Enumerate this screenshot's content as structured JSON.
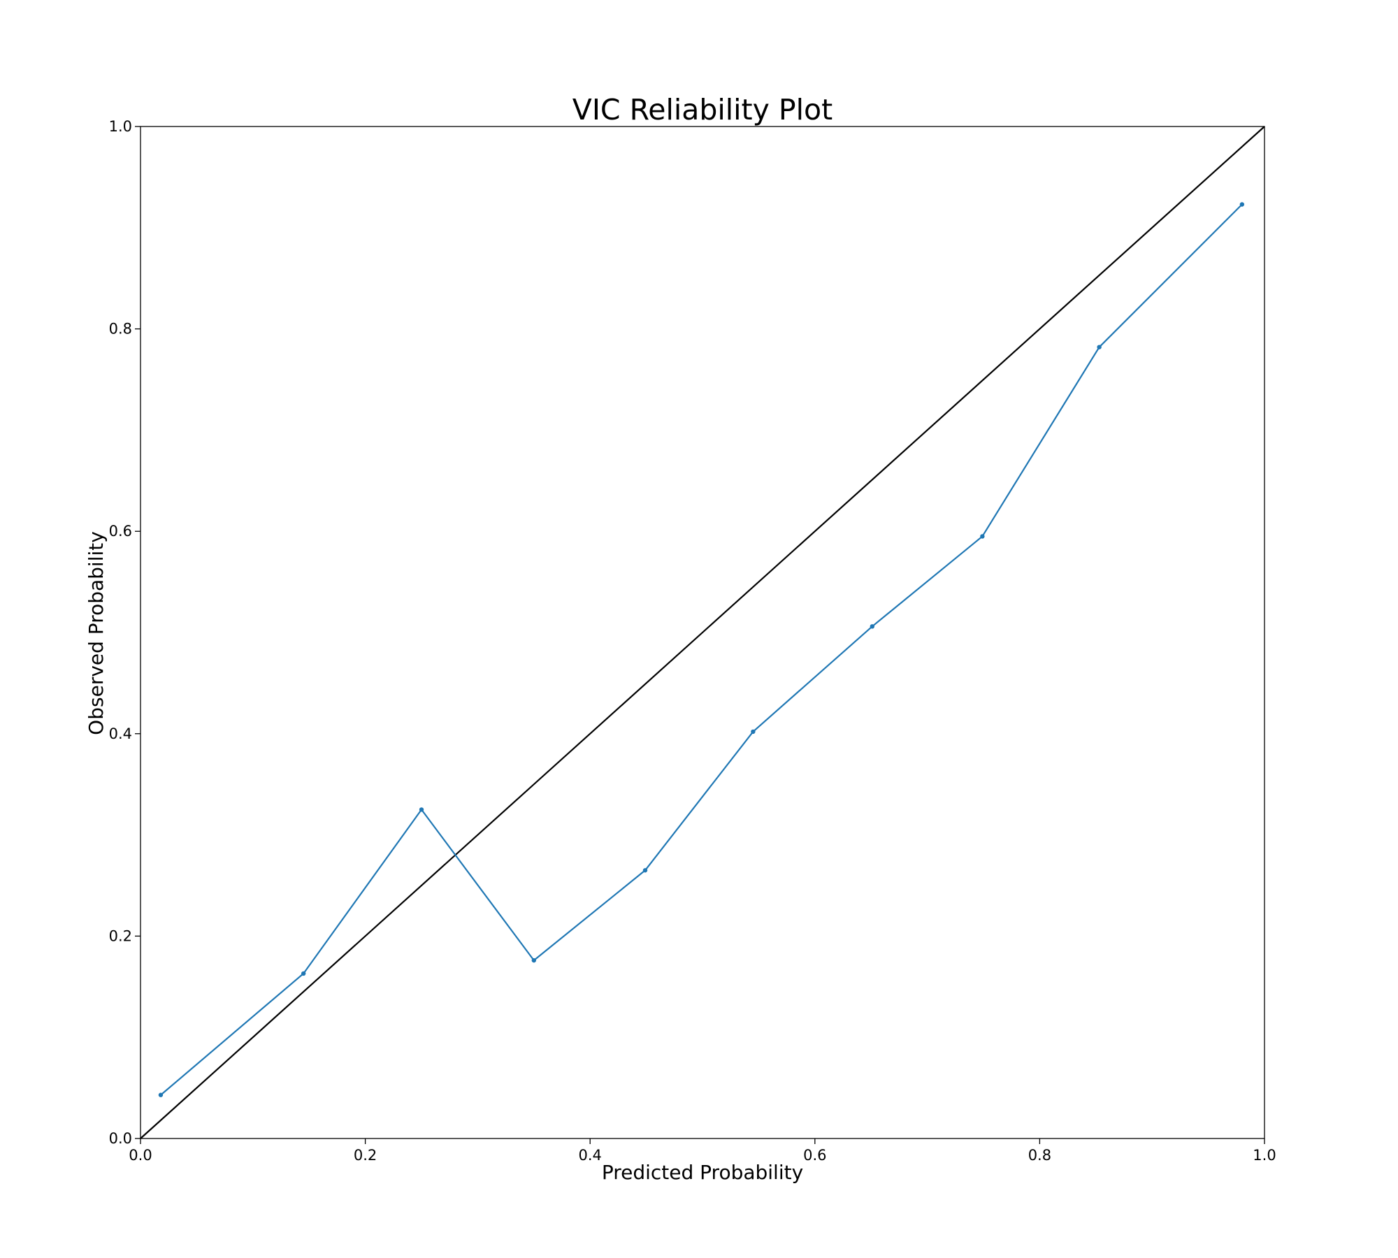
{
  "chart_data": {
    "type": "line",
    "title": "VIC Reliability Plot",
    "xlabel": "Predicted Probability",
    "ylabel": "Observed Probability",
    "xlim": [
      0.0,
      1.0
    ],
    "ylim": [
      0.0,
      1.0
    ],
    "xticks": [
      "0.0",
      "0.2",
      "0.4",
      "0.6",
      "0.8",
      "1.0"
    ],
    "yticks": [
      "0.0",
      "0.2",
      "0.4",
      "0.6",
      "0.8",
      "1.0"
    ],
    "grid": false,
    "reference_line": {
      "x": [
        0.0,
        1.0
      ],
      "y": [
        0.0,
        1.0
      ],
      "color": "#000000"
    },
    "series": [
      {
        "color": "#1f77b4",
        "x": [
          0.018,
          0.145,
          0.25,
          0.35,
          0.449,
          0.545,
          0.651,
          0.749,
          0.853,
          0.98
        ],
        "y": [
          0.043,
          0.163,
          0.325,
          0.176,
          0.265,
          0.402,
          0.506,
          0.595,
          0.782,
          0.923
        ]
      }
    ]
  }
}
